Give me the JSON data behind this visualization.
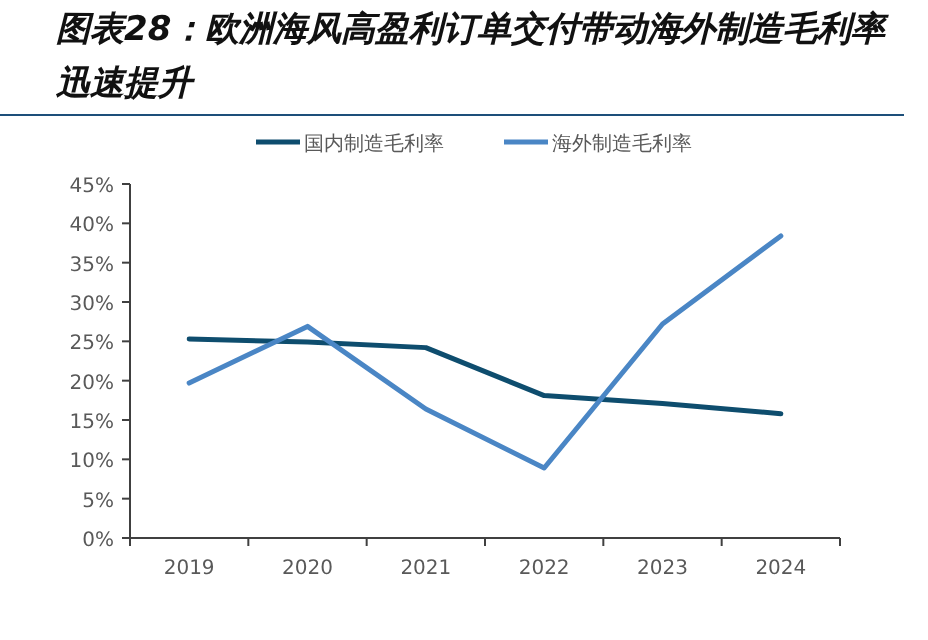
{
  "chart_data": {
    "type": "line",
    "title": "图表28：欧洲海风高盈利订单交付带动海外制造毛利率迅速提升",
    "categories": [
      "2019",
      "2020",
      "2021",
      "2022",
      "2023",
      "2024"
    ],
    "series": [
      {
        "name": "国内制造毛利率",
        "color": "#0e4d6e",
        "values": [
          25.3,
          24.9,
          24.2,
          18.1,
          17.1,
          15.8
        ]
      },
      {
        "name": "海外制造毛利率",
        "color": "#4a86c5",
        "values": [
          19.7,
          26.9,
          16.4,
          8.9,
          27.2,
          38.4
        ]
      }
    ],
    "ylim": [
      0,
      45
    ],
    "yticks": [
      {
        "value": 0,
        "label": "0%"
      },
      {
        "value": 5,
        "label": "5%"
      },
      {
        "value": 10,
        "label": "10%"
      },
      {
        "value": 15,
        "label": "15%"
      },
      {
        "value": 20,
        "label": "20%"
      },
      {
        "value": 25,
        "label": "25%"
      },
      {
        "value": 30,
        "label": "30%"
      },
      {
        "value": 35,
        "label": "35%"
      },
      {
        "value": 40,
        "label": "40%"
      },
      {
        "value": 45,
        "label": "45%"
      }
    ],
    "legend": "top",
    "marker": "none",
    "line_style": "solid",
    "grid": false
  }
}
